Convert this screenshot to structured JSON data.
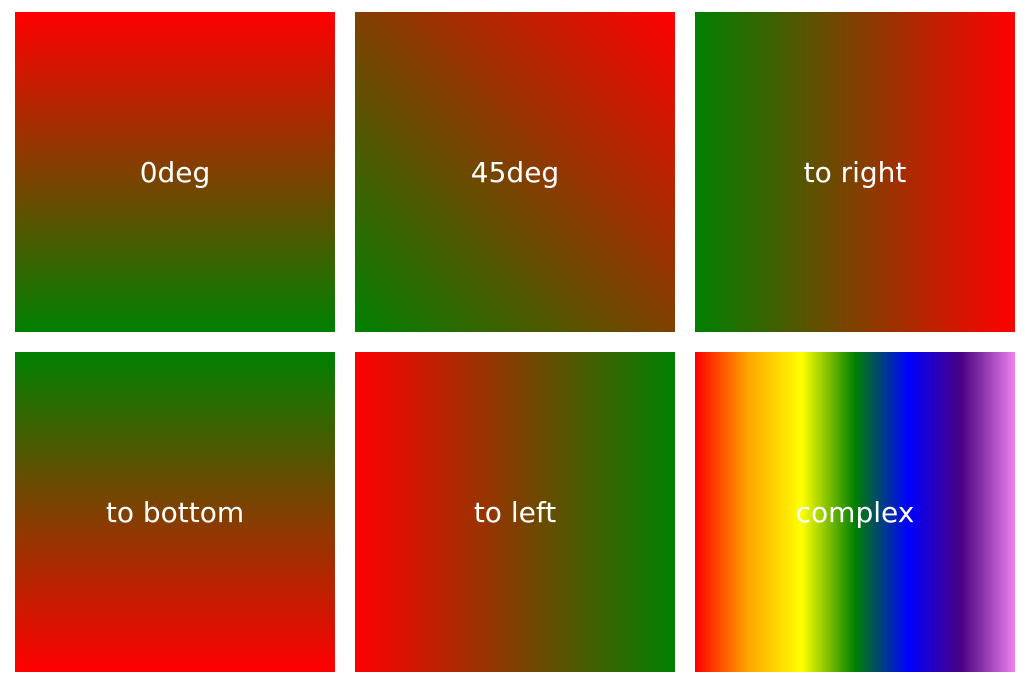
{
  "tiles": [
    {
      "label": "0deg",
      "gradient": "linear-gradient(0deg, green, red)"
    },
    {
      "label": "45deg",
      "gradient": "linear-gradient(45deg, green, red)"
    },
    {
      "label": "to right",
      "gradient": "linear-gradient(to right, green, red)"
    },
    {
      "label": "to bottom",
      "gradient": "linear-gradient(to bottom, green, red)"
    },
    {
      "label": "to left",
      "gradient": "linear-gradient(to left, green, red)"
    },
    {
      "label": "complex",
      "gradient": "linear-gradient(to right, red, orange, yellow, green, blue, indigo, violet)"
    }
  ],
  "colors": {
    "green": "#008000",
    "red": "#ff0000",
    "text": "#ffffff",
    "background": "#ffffff"
  }
}
